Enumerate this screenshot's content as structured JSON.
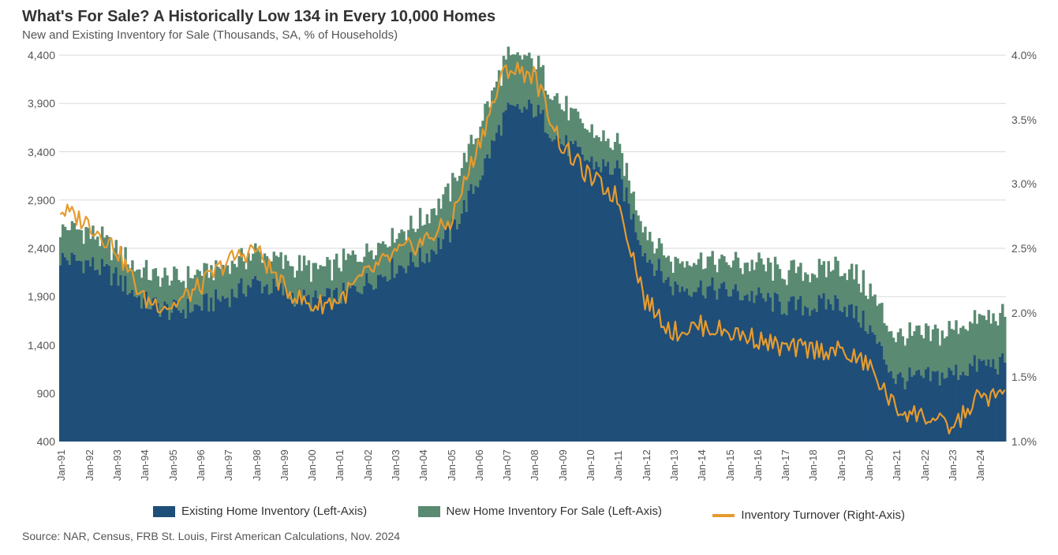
{
  "title": "What's For Sale? A Historically Low 134 in Every 10,000 Homes",
  "subtitle": "New and Existing Inventory for Sale (Thousands, SA, % of Households)",
  "source": "Source: NAR, Census, FRB St. Louis, First American Calculations, Nov. 2024",
  "chart": {
    "type": "stacked-bar+line",
    "background_color": "#ffffff",
    "grid_color": "#d9d9d9",
    "font_family": "Segoe UI",
    "title_fontsize": 20,
    "subtitle_fontsize": 15,
    "axis_label_fontsize": 14,
    "left_axis": {
      "min": 400,
      "max": 4400,
      "step": 500,
      "labels": [
        "400",
        "900",
        "1,400",
        "1,900",
        "2,400",
        "2,900",
        "3,400",
        "3,900",
        "4,400"
      ],
      "format": "number"
    },
    "right_axis": {
      "min": 1.0,
      "max": 4.0,
      "step": 0.5,
      "labels": [
        "1.0%",
        "1.5%",
        "2.0%",
        "2.5%",
        "3.0%",
        "3.5%",
        "4.0%"
      ],
      "format": "percent"
    },
    "x_major_labels": [
      "Jan-91",
      "Jan-92",
      "Jan-93",
      "Jan-94",
      "Jan-95",
      "Jan-96",
      "Jan-97",
      "Jan-98",
      "Jan-99",
      "Jan-00",
      "Jan-01",
      "Jan-02",
      "Jan-03",
      "Jan-04",
      "Jan-05",
      "Jan-06",
      "Jan-07",
      "Jan-08",
      "Jan-09",
      "Jan-10",
      "Jan-11",
      "Jan-12",
      "Jan-13",
      "Jan-14",
      "Jan-15",
      "Jan-16",
      "Jan-17",
      "Jan-18",
      "Jan-19",
      "Jan-20",
      "Jan-21",
      "Jan-22",
      "Jan-23",
      "Jan-24"
    ],
    "series": {
      "existing_home_inventory": {
        "label": "Existing Home Inventory (Left-Axis)",
        "color": "#1f4e79",
        "axis": "left",
        "render": "bar",
        "values_yearly": [
          2300,
          2250,
          2100,
          1850,
          1750,
          1800,
          1900,
          2050,
          1950,
          1850,
          1900,
          2050,
          2200,
          2300,
          2550,
          3100,
          3800,
          3850,
          3500,
          3300,
          3200,
          2350,
          2000,
          2000,
          1950,
          1900,
          1800,
          1800,
          1850,
          1600,
          1050,
          1050,
          1100,
          1200
        ]
      },
      "new_home_inventory": {
        "label": "New Home Inventory For Sale (Left-Axis)",
        "color": "#5b8a72",
        "axis": "left",
        "render": "bar_stacked_on_existing",
        "values_yearly": [
          330,
          310,
          290,
          300,
          320,
          330,
          310,
          300,
          310,
          320,
          330,
          340,
          350,
          380,
          450,
          520,
          560,
          500,
          380,
          300,
          260,
          250,
          260,
          280,
          300,
          320,
          340,
          360,
          380,
          400,
          420,
          440,
          460,
          480
        ]
      },
      "inventory_turnover": {
        "label": "Inventory Turnover (Right-Axis)",
        "color": "#e69b2e",
        "axis": "right",
        "render": "line",
        "line_width": 2.2,
        "values_yearly": [
          2.8,
          2.7,
          2.5,
          2.1,
          2.05,
          2.2,
          2.4,
          2.5,
          2.2,
          2.05,
          2.1,
          2.3,
          2.45,
          2.55,
          2.7,
          3.3,
          3.9,
          3.85,
          3.3,
          3.05,
          2.9,
          2.1,
          1.85,
          1.9,
          1.85,
          1.8,
          1.72,
          1.72,
          1.7,
          1.6,
          1.25,
          1.2,
          1.1,
          1.35
        ]
      }
    },
    "n_years": 34,
    "months_per_year": 12,
    "bar_noise_amplitude_existing": 120,
    "bar_noise_amplitude_new": 40,
    "line_noise_amplitude": 0.08
  },
  "legend": {
    "items": [
      {
        "key": "existing_home_inventory",
        "label": "Existing Home Inventory (Left-Axis)",
        "type": "box",
        "color": "#1f4e79"
      },
      {
        "key": "new_home_inventory",
        "label": "New Home Inventory For Sale (Left-Axis)",
        "type": "box",
        "color": "#5b8a72"
      },
      {
        "key": "inventory_turnover",
        "label": "Inventory Turnover (Right-Axis)",
        "type": "line",
        "color": "#e69b2e"
      }
    ]
  }
}
